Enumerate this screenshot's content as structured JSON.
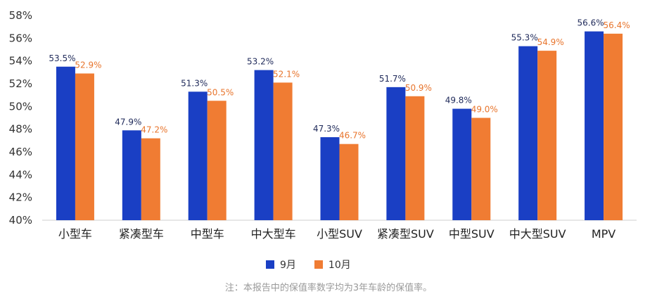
{
  "chart_data": {
    "type": "bar",
    "categories": [
      "小型车",
      "紧凑型车",
      "中型车",
      "中大型车",
      "小型SUV",
      "紧凑型SUV",
      "中型SUV",
      "中大型SUV",
      "MPV"
    ],
    "series": [
      {
        "name": "9月",
        "color": "#1a3fc4",
        "values": [
          53.5,
          47.9,
          51.3,
          53.2,
          47.3,
          51.7,
          49.8,
          55.3,
          56.6
        ],
        "labels": [
          "53.5%",
          "47.9%",
          "51.3%",
          "53.2%",
          "47.3%",
          "51.7%",
          "49.8%",
          "55.3%",
          "56.6%"
        ]
      },
      {
        "name": "10月",
        "color": "#f07c33",
        "values": [
          52.9,
          47.2,
          50.5,
          52.1,
          46.7,
          50.9,
          49.0,
          54.9,
          56.4
        ],
        "labels": [
          "52.9%",
          "47.2%",
          "50.5%",
          "52.1%",
          "46.7%",
          "50.9%",
          "49.0%",
          "54.9%",
          "56.4%"
        ]
      }
    ],
    "ylim": [
      40,
      58
    ],
    "yticks": [
      "40%",
      "42%",
      "44%",
      "46%",
      "48%",
      "50%",
      "52%",
      "54%",
      "56%",
      "58%"
    ],
    "ytick_values": [
      40,
      42,
      44,
      46,
      48,
      50,
      52,
      54,
      56,
      58
    ],
    "legend_position": "bottom-center",
    "grid": false
  },
  "note": "注：本报告中的保值率数字均为3年车龄的保值率。"
}
